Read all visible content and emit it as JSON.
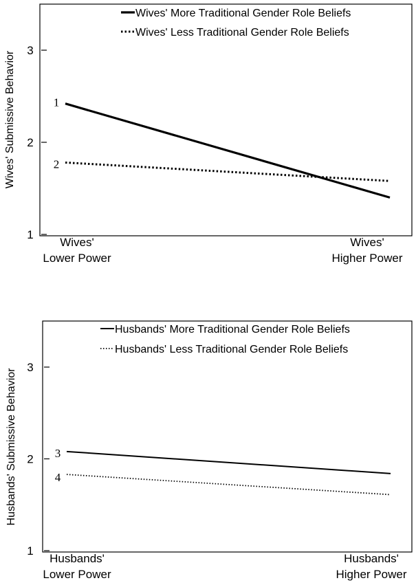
{
  "chart_data": [
    {
      "type": "line",
      "ylabel": "Wives' Submissive Behavior",
      "categories": [
        "Wives' Lower Power",
        "Wives' Higher Power"
      ],
      "category_lines": [
        [
          "Wives'",
          "Lower Power"
        ],
        [
          "Wives'",
          "Higher Power"
        ]
      ],
      "ylim": [
        1,
        3.5
      ],
      "yticks": [
        1,
        2,
        3
      ],
      "ytick_labels": [
        "1",
        "2",
        "3"
      ],
      "grid": false,
      "legend_position": "top-right",
      "series": [
        {
          "name": "Wives' More Traditional Gender Role Beliefs",
          "values": [
            2.42,
            1.4
          ],
          "style": "solid-thick",
          "marker_label": "1",
          "color": "#000000"
        },
        {
          "name": "Wives' Less Traditional Gender Role Beliefs",
          "values": [
            1.78,
            1.58
          ],
          "style": "dotted-thick",
          "marker_label": "2",
          "color": "#000000"
        }
      ]
    },
    {
      "type": "line",
      "ylabel": "Husbands' Submissive Behavior",
      "categories": [
        "Husbands' Lower Power",
        "Husbands' Higher Power"
      ],
      "category_lines": [
        [
          "Husbands'",
          "Lower Power"
        ],
        [
          "Husbands'",
          "Higher Power"
        ]
      ],
      "ylim": [
        1,
        3.5
      ],
      "yticks": [
        1,
        2,
        3
      ],
      "ytick_labels": [
        "1",
        "2",
        "3"
      ],
      "grid": false,
      "legend_position": "top-right",
      "series": [
        {
          "name": "Husbands' More Traditional Gender Role Beliefs",
          "values": [
            2.08,
            1.84
          ],
          "style": "solid-thin",
          "marker_label": "3",
          "color": "#000000"
        },
        {
          "name": "Husbands' Less Traditional Gender Role Beliefs",
          "values": [
            1.83,
            1.61
          ],
          "style": "dotted-thin",
          "marker_label": "4",
          "color": "#000000"
        }
      ]
    }
  ]
}
